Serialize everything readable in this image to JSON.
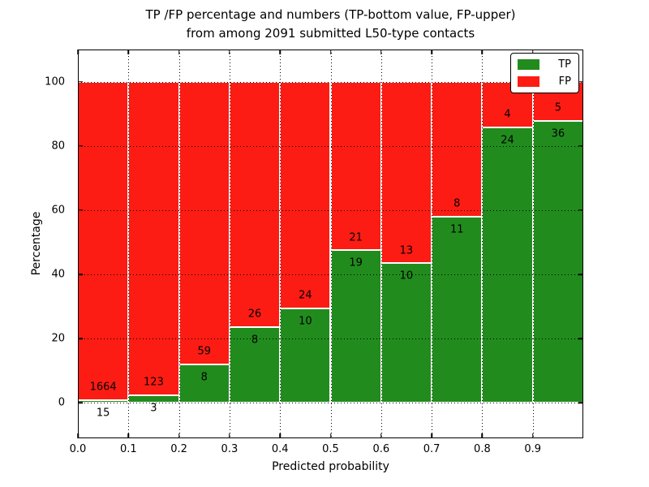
{
  "title": {
    "line1": "TP /FP percentage and numbers (TP-bottom value, FP-upper)",
    "line2": "from among 2091 submitted L50-type contacts"
  },
  "axes": {
    "xlabel": "Predicted probability",
    "ylabel": "Percentage",
    "x_ticks": [
      "0.0",
      "0.1",
      "0.2",
      "0.3",
      "0.4",
      "0.5",
      "0.6",
      "0.7",
      "0.8",
      "0.9"
    ],
    "y_ticks": [
      "0",
      "20",
      "40",
      "60",
      "80",
      "100"
    ]
  },
  "legend": {
    "position": "upper right",
    "items": [
      {
        "label": "TP",
        "color": "#218c1d"
      },
      {
        "label": "FP",
        "color": "#fc1c14"
      }
    ]
  },
  "colors": {
    "tp_green": "#218c1d",
    "fp_red": "#fc1c14",
    "bar_edge": "#ffffff",
    "grid": "#000000"
  },
  "chart_data": {
    "type": "bar",
    "stacked": true,
    "normalized_to_percent": true,
    "title": "TP /FP percentage and numbers (TP-bottom value, FP-upper) from among 2091 submitted L50-type contacts",
    "xlabel": "Predicted probability",
    "ylabel": "Percentage",
    "total_submitted": 2091,
    "bin_width": 0.1,
    "bins": [
      0.0,
      0.1,
      0.2,
      0.3,
      0.4,
      0.5,
      0.6,
      0.7,
      0.8,
      0.9
    ],
    "series": [
      {
        "name": "TP",
        "color": "#218c1d",
        "values": [
          15,
          3,
          8,
          8,
          10,
          19,
          10,
          11,
          24,
          36
        ]
      },
      {
        "name": "FP",
        "color": "#fc1c14",
        "values": [
          1664,
          123,
          59,
          26,
          24,
          21,
          13,
          8,
          4,
          5
        ]
      }
    ],
    "bar_label_note": "TP count printed below segment boundary, FP count printed above it",
    "xlim": [
      0.0,
      1.0
    ],
    "ylim": [
      -11,
      110
    ],
    "y_gridlines": [
      0,
      20,
      40,
      60,
      80,
      100
    ],
    "x_gridlines": [
      0.1,
      0.2,
      0.3,
      0.4,
      0.5,
      0.6,
      0.7,
      0.8,
      0.9
    ],
    "grid_style": "dotted",
    "legend_position": "upper right"
  }
}
